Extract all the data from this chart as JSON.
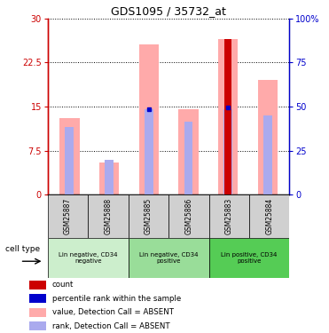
{
  "title": "GDS1095 / 35732_at",
  "samples": [
    "GSM25887",
    "GSM25888",
    "GSM25885",
    "GSM25886",
    "GSM25883",
    "GSM25884"
  ],
  "groups": [
    {
      "label": "Lin negative, CD34\nnegative",
      "size": 2,
      "color": "#cceecc"
    },
    {
      "label": "Lin negative, CD34\npositive",
      "size": 2,
      "color": "#99dd99"
    },
    {
      "label": "Lin positive, CD34\npositive",
      "size": 2,
      "color": "#55cc55"
    }
  ],
  "value_bars": [
    13.0,
    5.5,
    25.5,
    14.5,
    26.5,
    19.5
  ],
  "rank_bars": [
    11.5,
    6.0,
    14.5,
    12.5,
    14.5,
    13.5
  ],
  "count_bars": [
    null,
    null,
    null,
    null,
    26.5,
    null
  ],
  "count_color": "#cc0000",
  "value_bar_color": "#ffaaaa",
  "rank_bar_color": "#aaaaee",
  "percentile_dot_color": "#0000cc",
  "percentile_dot_values": [
    null,
    null,
    14.5,
    null,
    14.8,
    null
  ],
  "ylim_left": [
    0,
    30
  ],
  "ylim_right": [
    0,
    100
  ],
  "yticks_left": [
    0,
    7.5,
    15,
    22.5,
    30
  ],
  "yticks_right": [
    0,
    25,
    50,
    75,
    100
  ],
  "ytick_labels_left": [
    "0",
    "7.5",
    "15",
    "22.5",
    "30"
  ],
  "ytick_labels_right": [
    "0",
    "25",
    "50",
    "75",
    "100%"
  ],
  "left_axis_color": "#cc0000",
  "right_axis_color": "#0000cc",
  "bg_color": "#ffffff",
  "plot_bg_color": "#ffffff",
  "sample_bg_color": "#d0d0d0",
  "legend_items": [
    {
      "color": "#cc0000",
      "label": "count"
    },
    {
      "color": "#0000cc",
      "label": "percentile rank within the sample"
    },
    {
      "color": "#ffaaaa",
      "label": "value, Detection Call = ABSENT"
    },
    {
      "color": "#aaaaee",
      "label": "rank, Detection Call = ABSENT"
    }
  ],
  "value_bar_width": 0.5,
  "rank_bar_width": 0.22,
  "count_bar_width": 0.18
}
